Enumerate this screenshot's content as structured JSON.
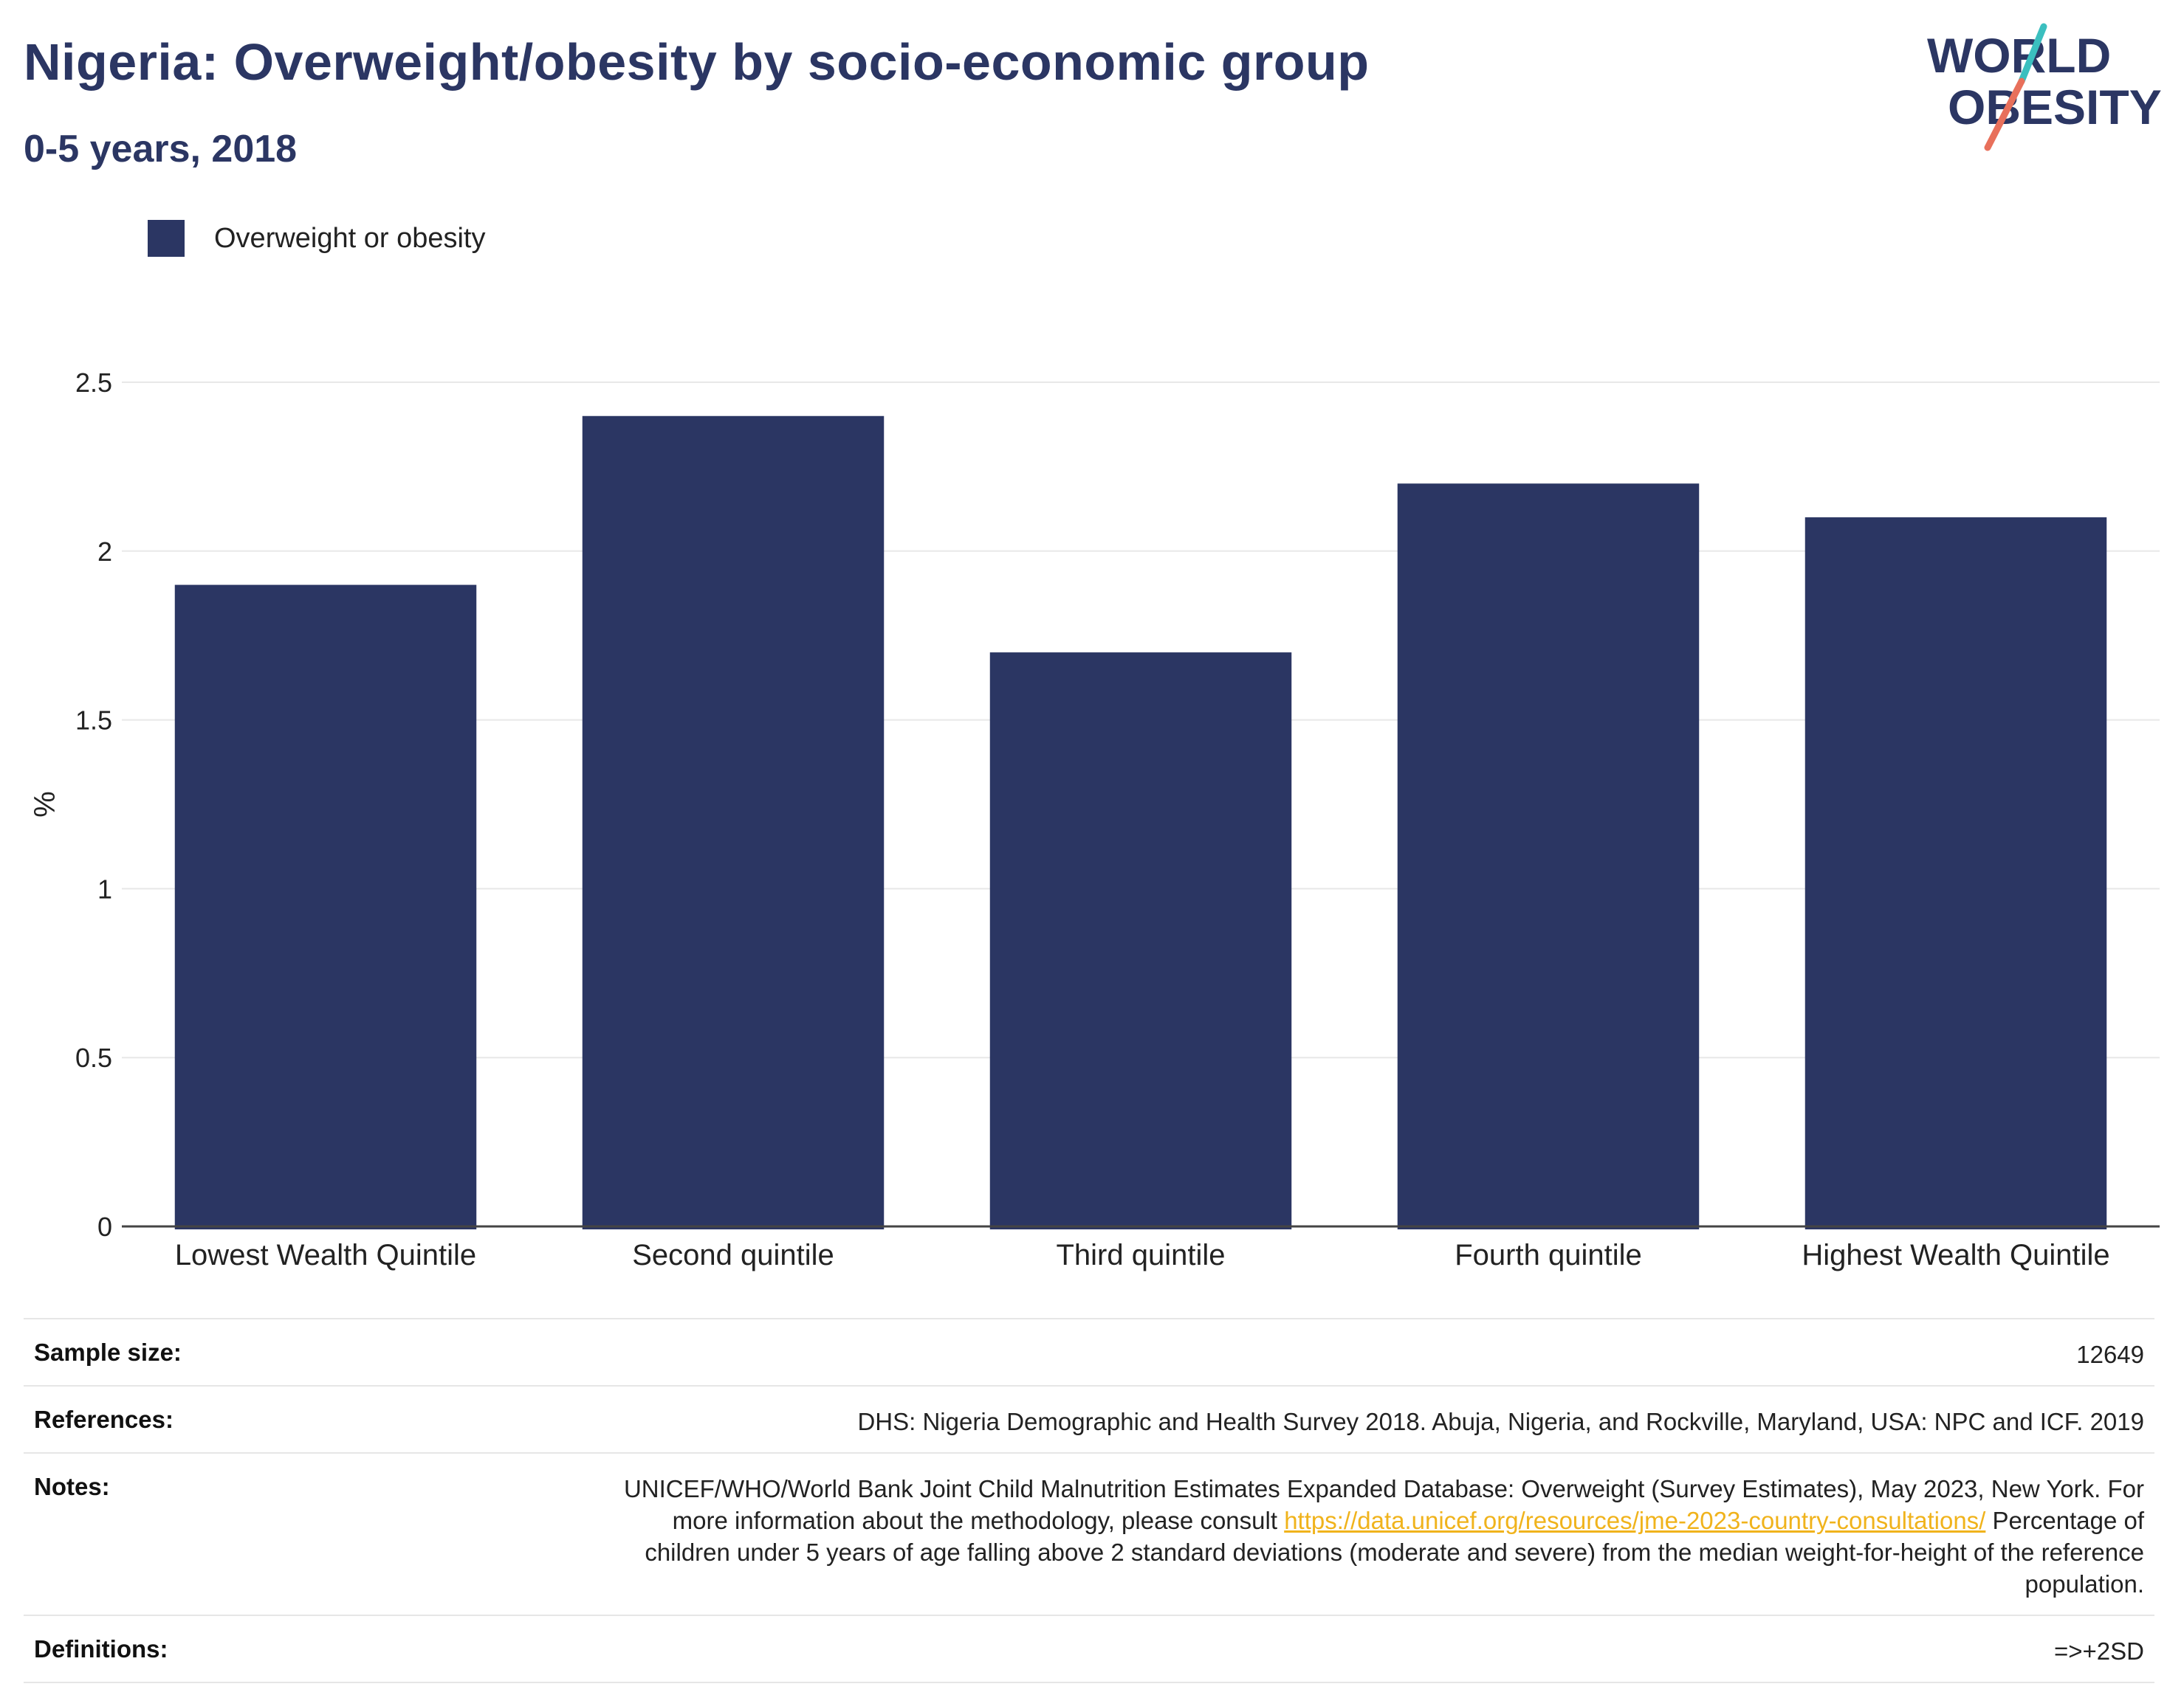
{
  "header": {
    "title": "Nigeria: Overweight/obesity by socio-economic group",
    "subtitle": "0-5 years, 2018"
  },
  "logo": {
    "line1": "WORLD",
    "line2": "OBESITY",
    "accent_teal": "#3bbfbf",
    "accent_coral": "#e8705b"
  },
  "legend": {
    "label": "Overweight or obesity",
    "color": "#2b3663"
  },
  "chart_data": {
    "type": "bar",
    "categories": [
      "Lowest Wealth Quintile",
      "Second quintile",
      "Third quintile",
      "Fourth quintile",
      "Highest Wealth Quintile"
    ],
    "series": [
      {
        "name": "Overweight or obesity",
        "values": [
          1.9,
          2.4,
          1.7,
          2.2,
          2.1
        ]
      }
    ],
    "ylabel": "%",
    "ylim": [
      0,
      2.5
    ],
    "yticks": [
      0,
      0.5,
      1,
      1.5,
      2,
      2.5
    ],
    "ytick_labels": [
      "0",
      "0.5",
      "1",
      "1.5",
      "2",
      "2.5"
    ],
    "grid": true,
    "bar_color": "#2b3663"
  },
  "info": {
    "sample_size": {
      "label": "Sample size:",
      "value": "12649"
    },
    "references": {
      "label": "References:",
      "value": "DHS: Nigeria Demographic and Health Survey 2018. Abuja, Nigeria, and Rockville, Maryland, USA: NPC and ICF. 2019"
    },
    "notes": {
      "label": "Notes:",
      "text1": "UNICEF/WHO/World Bank Joint Child Malnutrition Estimates Expanded Database: Overweight (Survey Estimates), May 2023, New York. For more information about the methodology, please consult ",
      "link": "https://data.unicef.org/resources/jme-2023-country-consultations/",
      "text2": " Percentage of children under 5 years of age falling above 2 standard deviations (moderate and severe) from the median weight-for-height of the reference population."
    },
    "definitions": {
      "label": "Definitions:",
      "value": "=>+2SD"
    }
  }
}
